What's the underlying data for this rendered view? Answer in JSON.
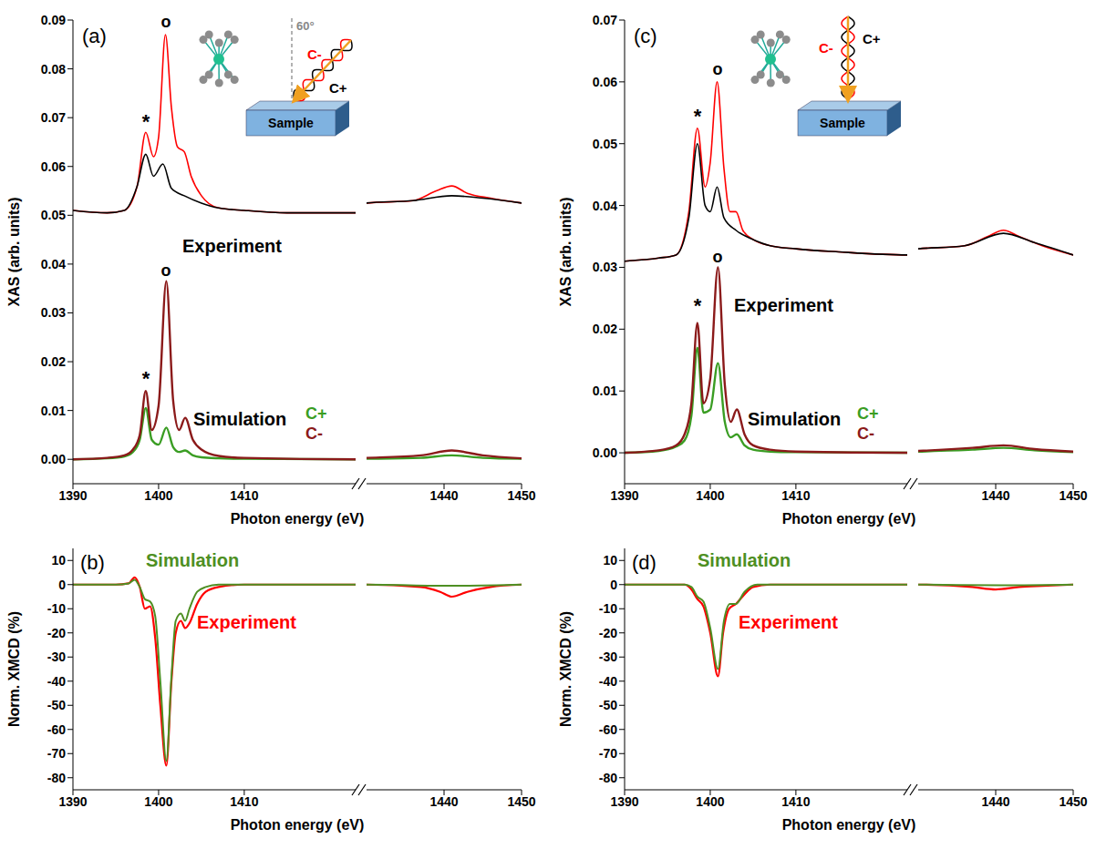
{
  "chart_data": [
    {
      "type": "line",
      "title": "(a)",
      "x_label": "Photon energy (eV)",
      "y_label": "XAS (arb. units)",
      "segments": [
        {
          "xlim": [
            1390,
            1423
          ],
          "xticks": [
            1390,
            1400,
            1410
          ]
        },
        {
          "xlim": [
            1430,
            1450
          ],
          "xticks": [
            1440,
            1450
          ]
        }
      ],
      "ylim": [
        -0.005,
        0.09
      ],
      "yticks": [
        {
          "value": 0,
          "label": "0.00"
        },
        0.01,
        0.02,
        0.03,
        0.04,
        0.05,
        0.06,
        0.07,
        0.08,
        0.09
      ],
      "annotations": [
        "Experiment",
        "Simulation",
        "*",
        "o",
        "*",
        "o",
        "60°",
        "Sample"
      ],
      "series": [
        {
          "name": "C-",
          "color": "#ff0000",
          "x": [
            1390,
            1394,
            1396,
            1397.5,
            1398.5,
            1399.4,
            1400,
            1400.8,
            1401.5,
            1402.2,
            1403,
            1403.8,
            1405,
            1407,
            1410,
            1415,
            1423,
            1430,
            1436,
            1439,
            1441,
            1443,
            1446,
            1450
          ],
          "values": [
            0.051,
            0.0505,
            0.051,
            0.056,
            0.067,
            0.062,
            0.066,
            0.087,
            0.072,
            0.064,
            0.063,
            0.058,
            0.054,
            0.0515,
            0.051,
            0.0505,
            0.0505,
            0.0525,
            0.053,
            0.055,
            0.056,
            0.0545,
            0.0535,
            0.0525
          ]
        },
        {
          "name": "C+",
          "color": "#000000",
          "x": [
            1390,
            1394,
            1396,
            1397.5,
            1398.5,
            1399.4,
            1400.5,
            1401.5,
            1403,
            1405,
            1407,
            1410,
            1415,
            1423,
            1430,
            1436,
            1441,
            1445,
            1450
          ],
          "values": [
            0.051,
            0.0505,
            0.051,
            0.056,
            0.0625,
            0.058,
            0.0605,
            0.0555,
            0.054,
            0.0525,
            0.0515,
            0.051,
            0.0505,
            0.0505,
            0.0525,
            0.053,
            0.054,
            0.0535,
            0.0525
          ]
        },
        {
          "name": "C+",
          "color": "#3a9d23",
          "x": [
            1390,
            1394,
            1396,
            1397,
            1397.8,
            1398.5,
            1399.2,
            1400,
            1400.9,
            1401.7,
            1402.4,
            1403.1,
            1404,
            1405,
            1407,
            1410,
            1423,
            1430,
            1437,
            1441,
            1445,
            1450
          ],
          "values": [
            0,
            0.0002,
            0.0006,
            0.0015,
            0.004,
            0.0105,
            0.004,
            0.003,
            0.0065,
            0.0025,
            0.0015,
            0.0018,
            0.0008,
            0.0004,
            0.0002,
            0.0001,
            0,
            0.0001,
            0.0003,
            0.0008,
            0.0003,
            0.0001
          ]
        },
        {
          "name": "C-",
          "color": "#8b1a1a",
          "x": [
            1390,
            1394,
            1396,
            1397,
            1397.8,
            1398.5,
            1399.2,
            1400,
            1400.9,
            1401.7,
            1402.4,
            1403.1,
            1404,
            1405,
            1407,
            1410,
            1423,
            1430,
            1437,
            1441,
            1445,
            1450
          ],
          "values": [
            0,
            0.0003,
            0.0008,
            0.002,
            0.005,
            0.014,
            0.006,
            0.011,
            0.0365,
            0.012,
            0.006,
            0.0085,
            0.004,
            0.002,
            0.0007,
            0.0003,
            0,
            0.0003,
            0.0008,
            0.0018,
            0.0008,
            0.0002
          ]
        }
      ]
    },
    {
      "type": "line",
      "title": "(b)",
      "x_label": "Photon energy (eV)",
      "y_label": "Norm. XMCD (%)",
      "segments": [
        {
          "xlim": [
            1390,
            1423
          ],
          "xticks": [
            1390,
            1400,
            1410
          ]
        },
        {
          "xlim": [
            1430,
            1450
          ],
          "xticks": [
            1440,
            1450
          ]
        }
      ],
      "ylim": [
        -85,
        15
      ],
      "yticks": [
        -80,
        -70,
        -60,
        -50,
        -40,
        -30,
        -20,
        -10,
        0,
        10
      ],
      "annotations": [],
      "series": [
        {
          "name": "Experiment",
          "color": "#ff0000",
          "x": [
            1390,
            1395,
            1396.5,
            1397.2,
            1397.8,
            1398.4,
            1399,
            1399.6,
            1400.2,
            1400.9,
            1401.5,
            1402,
            1402.6,
            1403.1,
            1403.6,
            1404.5,
            1405.5,
            1407,
            1410,
            1423,
            1430,
            1437,
            1439.5,
            1441,
            1443,
            1446,
            1450
          ],
          "values": [
            0,
            0,
            0.5,
            3,
            -1,
            -10,
            -9,
            -22,
            -50,
            -75,
            -40,
            -20,
            -15,
            -18,
            -16,
            -8,
            -3,
            -1,
            0,
            0,
            0,
            -1,
            -3,
            -5,
            -3,
            -1,
            0
          ]
        },
        {
          "name": "Simulation",
          "color": "#4e8f23",
          "x": [
            1390,
            1395,
            1396.5,
            1397.2,
            1397.8,
            1398.4,
            1399,
            1399.6,
            1400.2,
            1400.9,
            1401.5,
            1402,
            1402.6,
            1403.1,
            1403.6,
            1404.5,
            1405.5,
            1407,
            1410,
            1423,
            1430,
            1441,
            1450
          ],
          "values": [
            0,
            0,
            0.5,
            2,
            -1,
            -6,
            -7,
            -13,
            -40,
            -73,
            -38,
            -15,
            -12,
            -15,
            -10,
            -3,
            -1,
            0,
            0,
            0,
            0,
            -0.5,
            0
          ]
        }
      ]
    },
    {
      "type": "line",
      "title": "(c)",
      "x_label": "Photon energy (eV)",
      "y_label": "XAS (arb. units)",
      "segments": [
        {
          "xlim": [
            1390,
            1423
          ],
          "xticks": [
            1390,
            1400,
            1410
          ]
        },
        {
          "xlim": [
            1430,
            1450
          ],
          "xticks": [
            1440,
            1450
          ]
        }
      ],
      "ylim": [
        -0.005,
        0.07
      ],
      "yticks": [
        {
          "value": 0,
          "label": "0.00"
        },
        0.01,
        0.02,
        0.03,
        0.04,
        0.05,
        0.06,
        0.07
      ],
      "annotations": [
        "Experiment",
        "Simulation",
        "*",
        "o",
        "*",
        "o",
        "Sample"
      ],
      "series": [
        {
          "name": "C-",
          "color": "#ff0000",
          "x": [
            1390,
            1394,
            1396,
            1397.5,
            1398.5,
            1399.4,
            1400,
            1400.8,
            1401.6,
            1402.3,
            1403,
            1403.8,
            1405,
            1407,
            1410,
            1415,
            1423,
            1430,
            1436,
            1439,
            1441,
            1443,
            1446,
            1450
          ],
          "values": [
            0.031,
            0.0315,
            0.032,
            0.039,
            0.0525,
            0.043,
            0.047,
            0.06,
            0.046,
            0.039,
            0.039,
            0.036,
            0.0345,
            0.0335,
            0.033,
            0.0325,
            0.032,
            0.033,
            0.0335,
            0.035,
            0.036,
            0.035,
            0.0335,
            0.032
          ]
        },
        {
          "name": "C+",
          "color": "#000000",
          "x": [
            1390,
            1394,
            1396,
            1397.5,
            1398.5,
            1399.4,
            1400,
            1400.8,
            1401.6,
            1403,
            1405,
            1407,
            1410,
            1415,
            1423,
            1430,
            1436,
            1441,
            1445,
            1450
          ],
          "values": [
            0.031,
            0.0315,
            0.032,
            0.038,
            0.05,
            0.04,
            0.039,
            0.043,
            0.038,
            0.036,
            0.0345,
            0.0335,
            0.033,
            0.0325,
            0.032,
            0.033,
            0.0335,
            0.0355,
            0.034,
            0.032
          ]
        },
        {
          "name": "C+",
          "color": "#3a9d23",
          "x": [
            1390,
            1394,
            1396,
            1397,
            1397.8,
            1398.5,
            1399.2,
            1400,
            1400.9,
            1401.7,
            1402.4,
            1403.1,
            1404,
            1405,
            1407,
            1410,
            1423,
            1430,
            1437,
            1441,
            1445,
            1450
          ],
          "values": [
            0,
            0.0003,
            0.001,
            0.002,
            0.006,
            0.017,
            0.0065,
            0.007,
            0.0145,
            0.005,
            0.0025,
            0.003,
            0.0012,
            0.0005,
            0.0002,
            0.0001,
            0,
            0.0002,
            0.0005,
            0.0008,
            0.0004,
            0.0001
          ]
        },
        {
          "name": "C-",
          "color": "#8b1a1a",
          "x": [
            1390,
            1394,
            1396,
            1397,
            1397.8,
            1398.5,
            1399.2,
            1400,
            1400.9,
            1401.7,
            1402.4,
            1403.1,
            1404,
            1405,
            1407,
            1410,
            1423,
            1430,
            1437,
            1441,
            1445,
            1450
          ],
          "values": [
            0,
            0.0004,
            0.0012,
            0.003,
            0.008,
            0.021,
            0.008,
            0.012,
            0.03,
            0.011,
            0.005,
            0.007,
            0.003,
            0.0012,
            0.0005,
            0.0002,
            0,
            0.0003,
            0.0008,
            0.0012,
            0.0006,
            0.0002
          ]
        }
      ]
    },
    {
      "type": "line",
      "title": "(d)",
      "x_label": "Photon energy (eV)",
      "y_label": "Norm. XMCD (%)",
      "segments": [
        {
          "xlim": [
            1390,
            1423
          ],
          "xticks": [
            1390,
            1400,
            1410
          ]
        },
        {
          "xlim": [
            1430,
            1450
          ],
          "xticks": [
            1440,
            1450
          ]
        }
      ],
      "ylim": [
        -85,
        15
      ],
      "yticks": [
        -80,
        -70,
        -60,
        -50,
        -40,
        -30,
        -20,
        -10,
        0,
        10
      ],
      "annotations": [],
      "series": [
        {
          "name": "Experiment",
          "color": "#ff0000",
          "x": [
            1390,
            1395,
            1397,
            1397.8,
            1398.5,
            1399.2,
            1400,
            1400.9,
            1401.5,
            1402.2,
            1403,
            1404,
            1405,
            1407,
            1410,
            1423,
            1430,
            1437,
            1440,
            1443,
            1446,
            1450
          ],
          "values": [
            0,
            0,
            0,
            -2,
            -6,
            -9,
            -20,
            -38,
            -20,
            -10,
            -8,
            -4,
            -1,
            0,
            0,
            0,
            0,
            -1,
            -2,
            -1,
            -0.5,
            0
          ]
        },
        {
          "name": "Simulation",
          "color": "#4e8f23",
          "x": [
            1390,
            1395,
            1397,
            1397.8,
            1398.5,
            1399.2,
            1400,
            1400.9,
            1401.6,
            1402.3,
            1403,
            1404,
            1405.5,
            1407,
            1410,
            1423,
            1430,
            1441,
            1450
          ],
          "values": [
            0,
            0,
            0,
            -1,
            -5,
            -7,
            -18,
            -35,
            -15,
            -8,
            -8,
            -3,
            0,
            0,
            0,
            0,
            0,
            -0.3,
            0
          ]
        }
      ]
    }
  ]
}
